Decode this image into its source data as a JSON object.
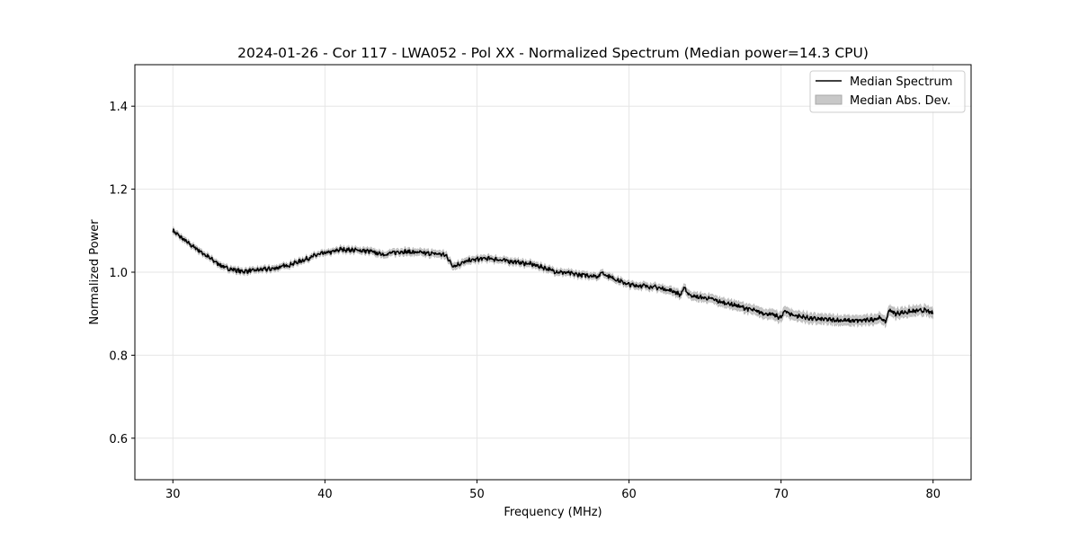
{
  "chart_data": {
    "type": "line",
    "title": "2024-01-26 - Cor 117 - LWA052 - Pol XX - Normalized Spectrum (Median power=14.3 CPU)",
    "xlabel": "Frequency (MHz)",
    "ylabel": "Normalized Power",
    "xlim": [
      27.5,
      82.5
    ],
    "ylim": [
      0.5,
      1.5
    ],
    "xticks": [
      30,
      40,
      50,
      60,
      70,
      80
    ],
    "yticks": [
      0.6,
      0.8,
      1.0,
      1.2,
      1.4
    ],
    "xtick_labels": [
      "30",
      "40",
      "50",
      "60",
      "70",
      "80"
    ],
    "ytick_labels": [
      "0.6",
      "0.8",
      "1.0",
      "1.2",
      "1.4"
    ],
    "grid": true,
    "legend": {
      "placement": "upper right",
      "entries": [
        "Median Spectrum",
        "Median Abs. Dev."
      ]
    },
    "series": [
      {
        "name": "Median Spectrum",
        "color": "#000000",
        "x": [
          30,
          30.5,
          31,
          31.5,
          32,
          32.5,
          33,
          33.5,
          34,
          34.5,
          35,
          35.5,
          36,
          36.5,
          37,
          37.5,
          38,
          38.5,
          39,
          39.5,
          40,
          40.5,
          41,
          41.5,
          42,
          42.5,
          43,
          43.5,
          44,
          44.5,
          45,
          45.5,
          46,
          46.5,
          47,
          47.5,
          48,
          48.3,
          48.5,
          49,
          49.5,
          50,
          50.5,
          51,
          51.5,
          52,
          52.5,
          53,
          53.5,
          54,
          54.5,
          55,
          55.5,
          56,
          56.5,
          57,
          57.5,
          58,
          58.2,
          58.5,
          59,
          59.5,
          60,
          60.5,
          61,
          61.5,
          62,
          62.5,
          63,
          63.4,
          63.6,
          64,
          64.5,
          65,
          65.5,
          66,
          66.5,
          67,
          67.5,
          68,
          68.5,
          69,
          69.5,
          70,
          70.3,
          70.5,
          71,
          71.5,
          72,
          72.5,
          73,
          73.5,
          74,
          74.5,
          75,
          75.5,
          76,
          76.5,
          76.9,
          77.1,
          77.5,
          78,
          78.5,
          79,
          79.5,
          80
        ],
        "values": [
          1.1,
          1.085,
          1.07,
          1.058,
          1.045,
          1.032,
          1.02,
          1.01,
          1.006,
          1.002,
          1.003,
          1.005,
          1.007,
          1.008,
          1.012,
          1.016,
          1.022,
          1.028,
          1.035,
          1.042,
          1.046,
          1.049,
          1.055,
          1.054,
          1.053,
          1.052,
          1.05,
          1.045,
          1.043,
          1.047,
          1.05,
          1.049,
          1.048,
          1.046,
          1.045,
          1.044,
          1.04,
          1.02,
          1.015,
          1.022,
          1.028,
          1.031,
          1.033,
          1.032,
          1.03,
          1.027,
          1.025,
          1.022,
          1.02,
          1.015,
          1.01,
          1.003,
          1.0,
          0.998,
          0.995,
          0.993,
          0.992,
          0.99,
          1.0,
          0.993,
          0.985,
          0.977,
          0.97,
          0.968,
          0.967,
          0.965,
          0.962,
          0.958,
          0.953,
          0.945,
          0.962,
          0.945,
          0.94,
          0.938,
          0.935,
          0.928,
          0.925,
          0.92,
          0.915,
          0.91,
          0.905,
          0.9,
          0.897,
          0.89,
          0.91,
          0.9,
          0.895,
          0.892,
          0.888,
          0.887,
          0.886,
          0.885,
          0.884,
          0.883,
          0.883,
          0.884,
          0.886,
          0.89,
          0.88,
          0.91,
          0.9,
          0.903,
          0.905,
          0.907,
          0.908,
          0.9
        ]
      },
      {
        "name": "Median Abs. Dev.",
        "color": "#c8c8c8",
        "x": [
          30,
          40,
          48,
          50,
          60,
          64,
          70,
          75,
          80
        ],
        "mad": [
          0.006,
          0.006,
          0.008,
          0.007,
          0.007,
          0.009,
          0.011,
          0.011,
          0.011
        ]
      }
    ]
  }
}
